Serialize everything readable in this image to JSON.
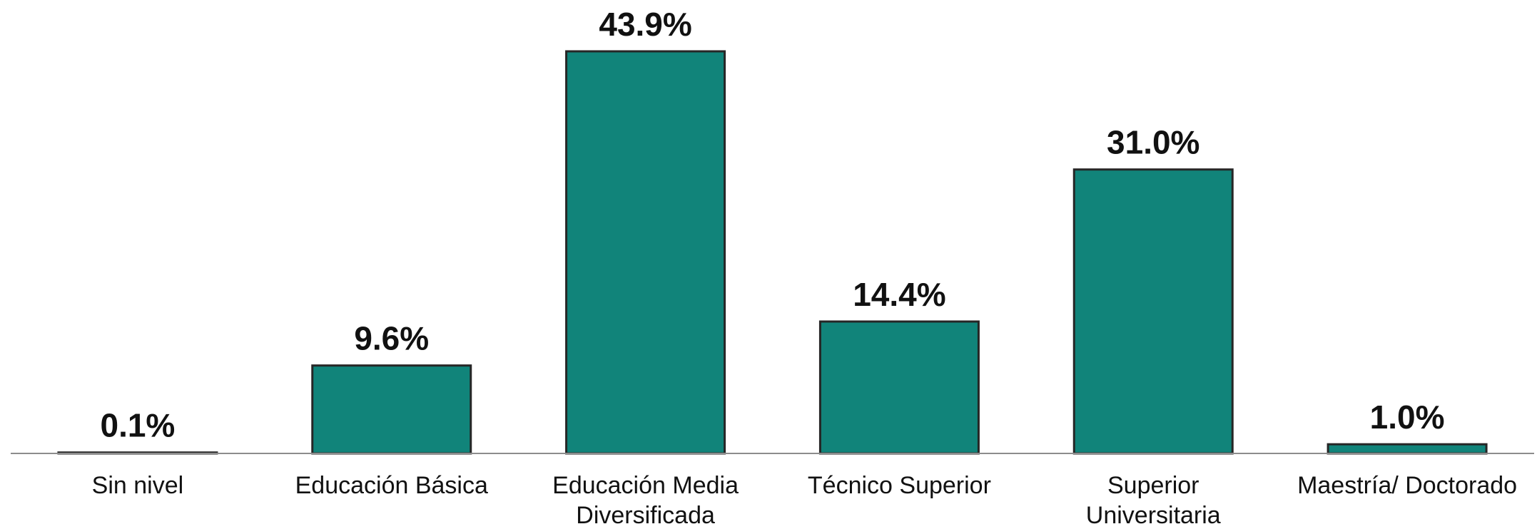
{
  "chart_data": {
    "type": "bar",
    "title": "",
    "xlabel": "",
    "ylabel": "",
    "ylim": [
      0,
      43.9
    ],
    "grid": false,
    "legend": "none",
    "bar_color": "#11847a",
    "categories": [
      [
        "Sin nivel"
      ],
      [
        "Educación Básica"
      ],
      [
        "Educación Media",
        "Diversificada"
      ],
      [
        "Técnico Superior"
      ],
      [
        "Superior",
        "Universitaria"
      ],
      [
        "Maestría/ Doctorado"
      ]
    ],
    "values": [
      0.1,
      9.6,
      43.9,
      14.4,
      31.0,
      1.0
    ],
    "data_labels": [
      "0.1%",
      "9.6%",
      "43.9%",
      "14.4%",
      "31.0%",
      "1.0%"
    ]
  }
}
